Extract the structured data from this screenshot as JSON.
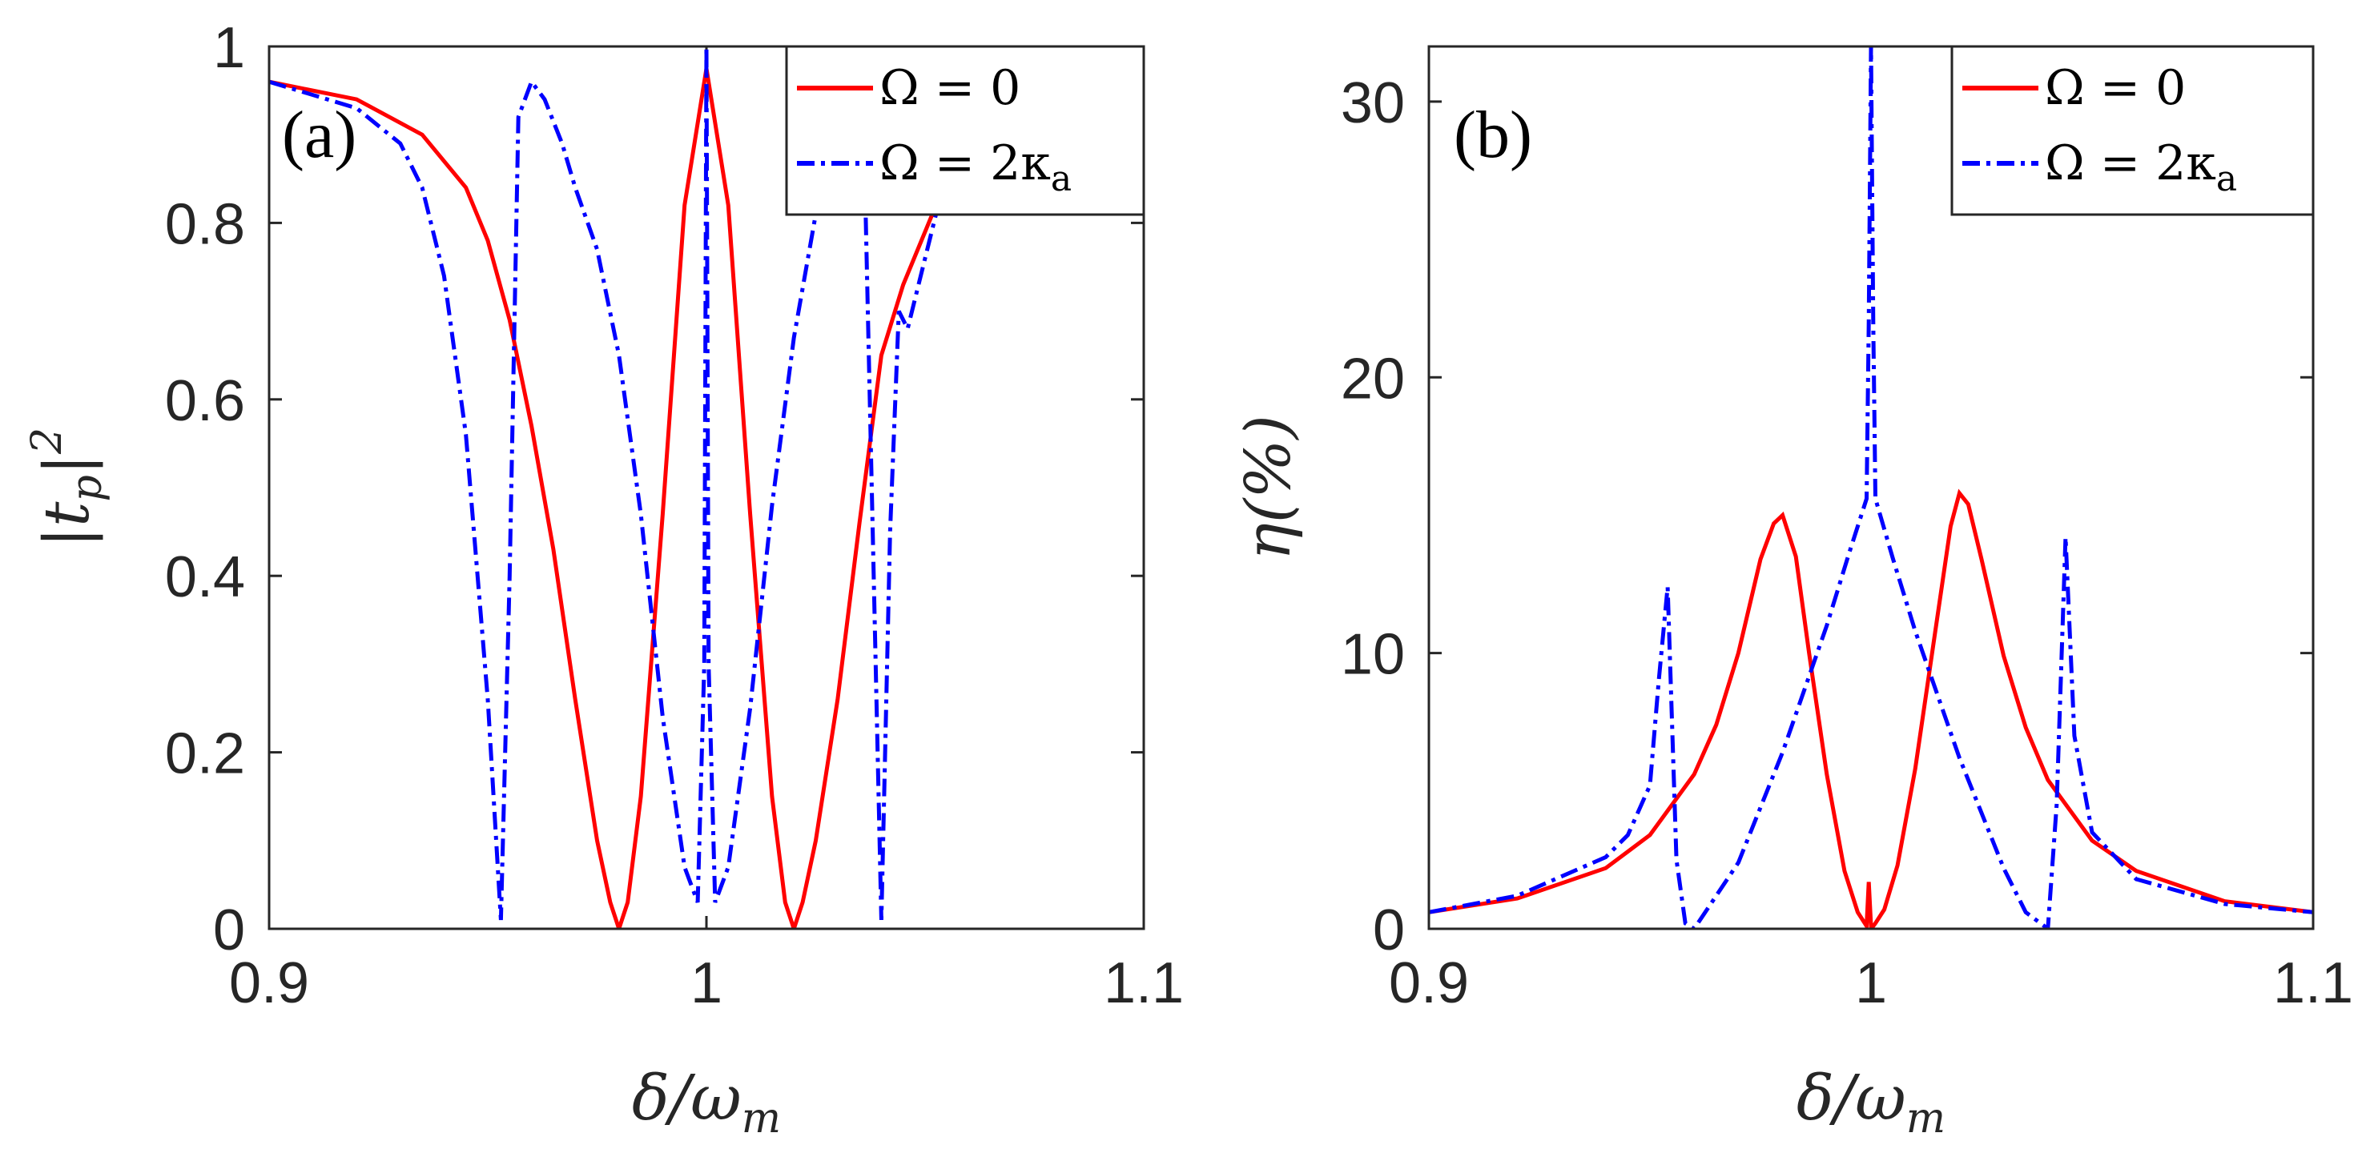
{
  "chart_data": [
    {
      "type": "line",
      "panel_label": "(a)",
      "xlabel": "δ/ω",
      "xlabel_sub": "m",
      "ylabel": "|t",
      "ylabel_sub": "p",
      "ylabel_tail": "|",
      "ylabel_sup": "2",
      "xlim": [
        0.9,
        1.1
      ],
      "ylim": [
        0,
        1
      ],
      "xticks": [
        "0.9",
        "1",
        "1.1"
      ],
      "yticks": [
        "0",
        "0.2",
        "0.4",
        "0.6",
        "0.8",
        "1"
      ],
      "legend_position": "top-right",
      "series": [
        {
          "name": "Ω = 0",
          "color": "#ff0000",
          "style": "solid",
          "x": [
            0.9,
            0.92,
            0.935,
            0.945,
            0.95,
            0.955,
            0.96,
            0.965,
            0.97,
            0.975,
            0.978,
            0.98,
            0.982,
            0.985,
            0.99,
            0.995,
            1.0,
            1.005,
            1.01,
            1.015,
            1.018,
            1.02,
            1.022,
            1.025,
            1.03,
            1.035,
            1.04,
            1.045,
            1.05,
            1.055
          ],
          "values": [
            0.96,
            0.94,
            0.9,
            0.84,
            0.78,
            0.69,
            0.57,
            0.43,
            0.26,
            0.1,
            0.03,
            0.0,
            0.03,
            0.15,
            0.47,
            0.82,
            0.975,
            0.82,
            0.47,
            0.15,
            0.03,
            0.0,
            0.03,
            0.1,
            0.26,
            0.46,
            0.65,
            0.73,
            0.79,
            0.85
          ]
        },
        {
          "name": "Ω = 2κ",
          "name_sub": "a",
          "color": "#0000ff",
          "style": "dashdot",
          "x": [
            0.9,
            0.92,
            0.93,
            0.935,
            0.94,
            0.945,
            0.95,
            0.953,
            0.955,
            0.957,
            0.96,
            0.963,
            0.967,
            0.97,
            0.975,
            0.98,
            0.985,
            0.99,
            0.995,
            0.998,
            0.9995,
            1.0,
            1.0005,
            1.002,
            1.005,
            1.01,
            1.015,
            1.02,
            1.025,
            1.03,
            1.034,
            1.036,
            1.04,
            1.042,
            1.044,
            1.046,
            1.05,
            1.055
          ],
          "values": [
            0.96,
            0.93,
            0.89,
            0.84,
            0.74,
            0.56,
            0.26,
            0.01,
            0.4,
            0.92,
            0.96,
            0.94,
            0.89,
            0.84,
            0.77,
            0.65,
            0.47,
            0.24,
            0.07,
            0.03,
            0.3,
            1.0,
            0.3,
            0.03,
            0.07,
            0.25,
            0.48,
            0.67,
            0.81,
            0.9,
            0.94,
            0.9,
            0.01,
            0.45,
            0.7,
            0.68,
            0.76,
            0.86
          ]
        }
      ]
    },
    {
      "type": "line",
      "panel_label": "(b)",
      "xlabel": "δ/ω",
      "xlabel_sub": "m",
      "ylabel": "η(%)",
      "xlim": [
        0.9,
        1.1
      ],
      "ylim": [
        0,
        32
      ],
      "xticks": [
        "0.9",
        "1",
        "1.1"
      ],
      "yticks": [
        "0",
        "10",
        "20",
        "30"
      ],
      "legend_position": "top-right",
      "series": [
        {
          "name": "Ω = 0",
          "color": "#ff0000",
          "style": "solid",
          "x": [
            0.9,
            0.92,
            0.94,
            0.95,
            0.96,
            0.965,
            0.97,
            0.975,
            0.978,
            0.98,
            0.983,
            0.986,
            0.99,
            0.994,
            0.997,
            0.999,
            0.9995,
            1.0,
            1.0005,
            1.001,
            1.003,
            1.006,
            1.01,
            1.014,
            1.018,
            1.02,
            1.022,
            1.025,
            1.03,
            1.035,
            1.04,
            1.05,
            1.06,
            1.08,
            1.1
          ],
          "values": [
            0.6,
            1.1,
            2.2,
            3.4,
            5.6,
            7.4,
            10.0,
            13.4,
            14.7,
            15.0,
            13.5,
            10.0,
            5.6,
            2.1,
            0.6,
            0.1,
            1.7,
            0.1,
            0.1,
            0.2,
            0.7,
            2.3,
            5.8,
            10.2,
            14.6,
            15.8,
            15.4,
            13.4,
            9.9,
            7.3,
            5.4,
            3.2,
            2.1,
            1.0,
            0.6
          ]
        },
        {
          "name": "Ω = 2κ",
          "name_sub": "a",
          "color": "#0000ff",
          "style": "dashdot",
          "x": [
            0.9,
            0.92,
            0.94,
            0.945,
            0.95,
            0.952,
            0.954,
            0.956,
            0.958,
            0.96,
            0.97,
            0.98,
            0.99,
            0.995,
            0.999,
            0.9995,
            1.0,
            1.0005,
            1.001,
            1.005,
            1.01,
            1.02,
            1.03,
            1.035,
            1.04,
            1.042,
            1.044,
            1.046,
            1.05,
            1.06,
            1.08,
            1.1
          ],
          "values": [
            0.6,
            1.2,
            2.6,
            3.4,
            5.2,
            9.0,
            12.4,
            2.5,
            0.2,
            0.0,
            2.4,
            6.4,
            11.0,
            13.6,
            15.6,
            22.0,
            32.0,
            22.0,
            15.6,
            13.4,
            10.8,
            6.2,
            2.2,
            0.6,
            0.0,
            4.5,
            14.2,
            7.0,
            3.5,
            1.8,
            0.9,
            0.6
          ]
        }
      ]
    }
  ]
}
